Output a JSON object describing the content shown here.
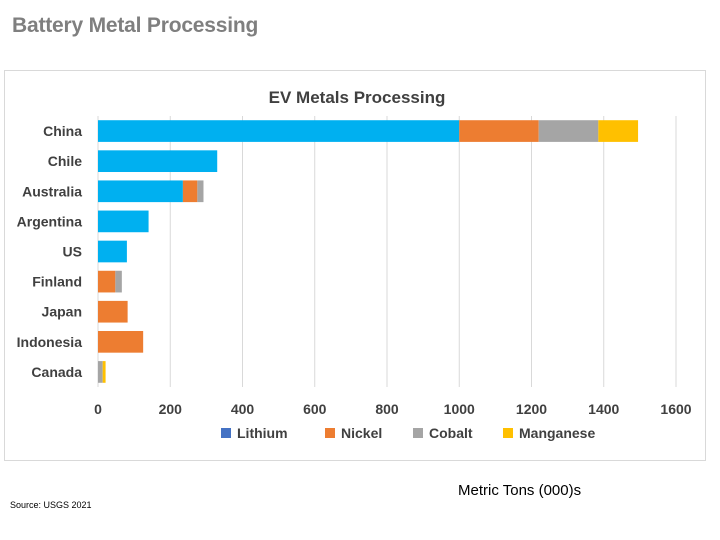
{
  "slide": {
    "title": "Battery Metal Processing",
    "units_note": "Metric Tons (000)s",
    "source": "Source:  USGS 2021"
  },
  "chart_data": {
    "type": "bar",
    "orientation": "horizontal",
    "stacked": true,
    "title": "EV Metals Processing",
    "xlabel": "",
    "ylabel": "",
    "categories": [
      "China",
      "Chile",
      "Australia",
      "Argentina",
      "US",
      "Finland",
      "Japan",
      "Indonesia",
      "Canada"
    ],
    "series": [
      {
        "name": "Lithium",
        "color": "#00b0f0",
        "legend_color": "#4472c4",
        "values": [
          1000,
          330,
          235,
          140,
          80,
          0,
          0,
          0,
          0
        ]
      },
      {
        "name": "Nickel",
        "color": "#ed7d31",
        "legend_color": "#ed7d31",
        "values": [
          220,
          0,
          40,
          0,
          0,
          48,
          82,
          125,
          0
        ]
      },
      {
        "name": "Cobalt",
        "color": "#a5a5a5",
        "legend_color": "#a5a5a5",
        "values": [
          165,
          0,
          17,
          0,
          0,
          18,
          0,
          0,
          13
        ]
      },
      {
        "name": "Manganese",
        "color": "#ffc000",
        "legend_color": "#ffc000",
        "values": [
          110,
          0,
          0,
          0,
          0,
          0,
          0,
          0,
          8
        ]
      }
    ],
    "xlim": [
      0,
      1600
    ],
    "xticks": [
      "0",
      "200",
      "400",
      "600",
      "800",
      "1000",
      "1200",
      "1400",
      "1600"
    ],
    "grid": true,
    "legend_position": "bottom"
  }
}
